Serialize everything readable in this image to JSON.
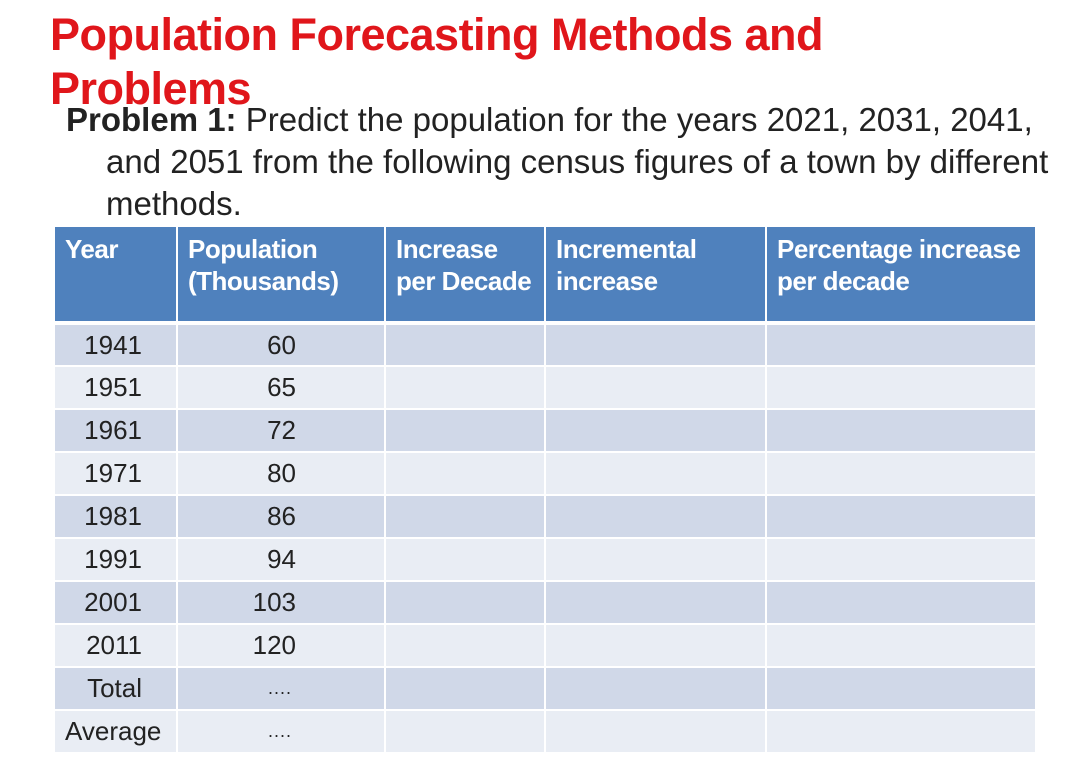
{
  "title": "Population Forecasting Methods and Problems",
  "problem": {
    "label": "Problem 1:",
    "text": " Predict the population for the years 2021, 2031, 2041, and 2051 from the following census figures of a town by different methods."
  },
  "table": {
    "headers": [
      "Year",
      "Population (Thousands)",
      "Increase per Decade",
      "Incremental increase",
      "Percentage increase per decade"
    ],
    "rows": [
      {
        "year": "1941",
        "population": "60"
      },
      {
        "year": "1951",
        "population": "65"
      },
      {
        "year": "1961",
        "population": "72"
      },
      {
        "year": "1971",
        "population": "80"
      },
      {
        "year": "1981",
        "population": "86"
      },
      {
        "year": "1991",
        "population": "94"
      },
      {
        "year": "2001",
        "population": "103"
      },
      {
        "year": "2011",
        "population": "120"
      },
      {
        "year": "Total",
        "population": "...."
      },
      {
        "year": "Average",
        "population": "...."
      }
    ]
  },
  "colors": {
    "title": "#e0161b",
    "header_bg": "#4f81bd",
    "row_dark": "#d0d8e8",
    "row_light": "#e9edf4"
  }
}
